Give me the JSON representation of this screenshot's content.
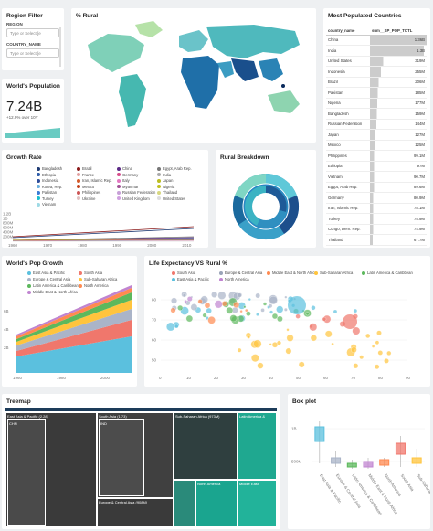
{
  "filter": {
    "title": "Region Filter",
    "region_label": "REGION",
    "region_placeholder": "Type or Select [e",
    "country_label": "COUNTRY_NAME",
    "country_placeholder": "Type or Select [e"
  },
  "population": {
    "title": "World's Population",
    "value": "7.24B",
    "change": "+12.9% over 10Y"
  },
  "rural_map": {
    "title": "% Rural"
  },
  "most_populated": {
    "title": "Most Populated Countries",
    "col1": "country_name",
    "col2": "sum__SP_POP_TOTL",
    "rows": [
      {
        "name": "China",
        "value": "1.36B",
        "share": 1.0
      },
      {
        "name": "India",
        "value": "1.3B",
        "share": 0.95
      },
      {
        "name": "United States",
        "value": "319M",
        "share": 0.23
      },
      {
        "name": "Indonesia",
        "value": "255M",
        "share": 0.19
      },
      {
        "name": "Brazil",
        "value": "206M",
        "share": 0.15
      },
      {
        "name": "Pakistan",
        "value": "185M",
        "share": 0.14
      },
      {
        "name": "Nigeria",
        "value": "177M",
        "share": 0.13
      },
      {
        "name": "Bangladesh",
        "value": "159M",
        "share": 0.12
      },
      {
        "name": "Russian Federation",
        "value": "144M",
        "share": 0.11
      },
      {
        "name": "Japan",
        "value": "127M",
        "share": 0.09
      },
      {
        "name": "Mexico",
        "value": "125M",
        "share": 0.09
      },
      {
        "name": "Philippines",
        "value": "99.1M",
        "share": 0.07
      },
      {
        "name": "Ethiopia",
        "value": "97M",
        "share": 0.07
      },
      {
        "name": "Vietnam",
        "value": "90.7M",
        "share": 0.07
      },
      {
        "name": "Egypt, Arab Rep.",
        "value": "89.6M",
        "share": 0.07
      },
      {
        "name": "Germany",
        "value": "80.9M",
        "share": 0.06
      },
      {
        "name": "Iran, Islamic Rep.",
        "value": "78.1M",
        "share": 0.06
      },
      {
        "name": "Turkey",
        "value": "75.9M",
        "share": 0.06
      },
      {
        "name": "Congo, Dem. Rep.",
        "value": "74.9M",
        "share": 0.06
      },
      {
        "name": "Thailand",
        "value": "67.7M",
        "share": 0.05
      }
    ]
  },
  "growth_rate": {
    "title": "Growth Rate",
    "legend": [
      {
        "name": "Bangladesh",
        "color": "#1f3b73"
      },
      {
        "name": "Brazil",
        "color": "#8b1a1a"
      },
      {
        "name": "China",
        "color": "#5b2a86"
      },
      {
        "name": "Egypt, Arab Rep.",
        "color": "#777"
      },
      {
        "name": "Ethiopia",
        "color": "#2b5aa8"
      },
      {
        "name": "France",
        "color": "#e2a0a0"
      },
      {
        "name": "Germany",
        "color": "#d84d8c"
      },
      {
        "name": "India",
        "color": "#aaa"
      },
      {
        "name": "Indonesia",
        "color": "#2d4d9a"
      },
      {
        "name": "Iran, Islamic Rep.",
        "color": "#d45a2a"
      },
      {
        "name": "Italy",
        "color": "#e377c2"
      },
      {
        "name": "Japan",
        "color": "#bcbd22"
      },
      {
        "name": "Korea, Rep.",
        "color": "#6ab0de"
      },
      {
        "name": "Mexico",
        "color": "#c2411a"
      },
      {
        "name": "Myanmar",
        "color": "#a05195"
      },
      {
        "name": "Nigeria",
        "color": "#c0c020"
      },
      {
        "name": "Pakistan",
        "color": "#3a7bd5"
      },
      {
        "name": "Philippines",
        "color": "#c55"
      },
      {
        "name": "Russian Federation",
        "color": "#c7a0d8"
      },
      {
        "name": "Thailand",
        "color": "#d8d880"
      },
      {
        "name": "Turkey",
        "color": "#17becf"
      },
      {
        "name": "Ukraine",
        "color": "#e0c0c0"
      },
      {
        "name": "United Kingdom",
        "color": "#d0a0e0"
      },
      {
        "name": "United States",
        "color": "#ddd"
      },
      {
        "name": "Vietnam",
        "color": "#9edae5"
      }
    ],
    "yticks": [
      "1.2B",
      "1B",
      "800M",
      "600M",
      "400M",
      "200M"
    ],
    "xticks": [
      "1960",
      "1970",
      "1980",
      "1990",
      "2000",
      "2010"
    ]
  },
  "rural_breakdown": {
    "title": "Rural Breakdown"
  },
  "pop_growth": {
    "title": "World's Pop Growth",
    "legend": [
      {
        "name": "East Asia & Pacific",
        "color": "#5bc0de"
      },
      {
        "name": "South Asia",
        "color": "#f0776c"
      },
      {
        "name": "Europe & Central Asia",
        "color": "#aab4c8"
      },
      {
        "name": "Sub-Saharan Africa",
        "color": "#ffc43d"
      },
      {
        "name": "Latin America & Caribbean",
        "color": "#5cb85c"
      },
      {
        "name": "North America",
        "color": "#ff8a50"
      },
      {
        "name": "Middle East & North Africa",
        "color": "#c084d0"
      }
    ],
    "yticks": [
      "6B",
      "4B",
      "2B"
    ],
    "xticks": [
      "1960",
      "1980",
      "2000"
    ]
  },
  "life_expectancy": {
    "title": "Life Expectancy VS Rural %",
    "legend": [
      {
        "name": "South Asia",
        "color": "#f0776c"
      },
      {
        "name": "Europe & Central Asia",
        "color": "#9aa4b8"
      },
      {
        "name": "Middle East & North Africa",
        "color": "#ff8a50"
      },
      {
        "name": "Sub-Saharan Africa",
        "color": "#ffc43d"
      },
      {
        "name": "Latin America & Caribbean",
        "color": "#5cb85c"
      },
      {
        "name": "East Asia & Pacific",
        "color": "#5bc0de"
      },
      {
        "name": "North America",
        "color": "#c084d0"
      }
    ],
    "yticks": [
      "80",
      "70",
      "60",
      "50"
    ],
    "xticks": [
      "0",
      "10",
      "20",
      "30",
      "40",
      "50",
      "60",
      "70",
      "80",
      "90"
    ]
  },
  "treemap": {
    "title": "Treemap",
    "blocks": [
      {
        "label": "East Asia & Pacific",
        "sub": "(2.28)"
      },
      {
        "label": "South Asia",
        "sub": "(1.73)"
      },
      {
        "label": "Sub-Saharan Africa",
        "sub": "(973M)"
      },
      {
        "label": "Latin America &",
        "sub": ""
      },
      {
        "label": "Europe & Central Asia",
        "sub": "(908M)"
      },
      {
        "label": "North America",
        "sub": ""
      },
      {
        "label": "Middle East",
        "sub": ""
      },
      {
        "label": "CHN",
        "sub": ""
      },
      {
        "label": "IND",
        "sub": ""
      }
    ]
  },
  "box_plot": {
    "title": "Box plot",
    "yticks": [
      "1B",
      "500M"
    ],
    "categories": [
      "East Asia & Pacific",
      "Europe & Central Asia",
      "Latin America & Caribbean",
      "Middle East & North Africa",
      "North America",
      "South Asia",
      "Sub-Saharan Africa"
    ]
  }
}
